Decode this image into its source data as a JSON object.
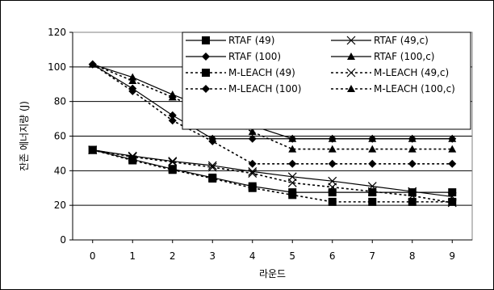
{
  "chart_data": {
    "type": "line",
    "title": "",
    "xlabel": "라운드",
    "ylabel": "잔존 에너지량 (J)",
    "xlim": [
      -0.5,
      9.5
    ],
    "ylim": [
      0,
      120
    ],
    "x_ticks": [
      0,
      1,
      2,
      3,
      4,
      5,
      6,
      7,
      8,
      9
    ],
    "y_ticks": [
      0,
      20,
      40,
      60,
      80,
      100,
      120
    ],
    "grid": "y-major",
    "legend_position": "top-right",
    "x": [
      0,
      1,
      2,
      3,
      4,
      5,
      6,
      7,
      8,
      9
    ],
    "series": [
      {
        "name": "RTAF (49)",
        "style": "solid",
        "marker": "square",
        "values": [
          52,
          46.5,
          41,
          36,
          31,
          27.5,
          27.5,
          27.5,
          27.5,
          27.5
        ]
      },
      {
        "name": "RTAF (49,c)",
        "style": "solid",
        "marker": "x",
        "values": [
          52,
          48.5,
          45.5,
          43,
          39.5,
          36.5,
          34,
          31,
          28,
          25
        ]
      },
      {
        "name": "RTAF (100)",
        "style": "solid",
        "marker": "diamond",
        "values": [
          101.5,
          87.5,
          72,
          58.5,
          58.5,
          58.5,
          58.5,
          58.5,
          58.5,
          58.5
        ]
      },
      {
        "name": "RTAF (100,c)",
        "style": "solid",
        "marker": "triangle",
        "values": [
          101.5,
          94,
          84,
          75,
          66,
          58.5,
          58.5,
          58.5,
          58.5,
          58.5
        ]
      },
      {
        "name": "M-LEACH (49)",
        "style": "dashed",
        "marker": "square",
        "values": [
          52,
          46,
          40.5,
          35.5,
          30,
          26,
          22,
          22,
          22,
          22
        ]
      },
      {
        "name": "M-LEACH (49,c)",
        "style": "dashed",
        "marker": "x",
        "values": [
          52,
          48,
          45,
          42,
          38.5,
          33,
          30.5,
          28,
          25.5,
          21.5
        ]
      },
      {
        "name": "M-LEACH (100)",
        "style": "dashed",
        "marker": "diamond",
        "values": [
          101.5,
          86,
          69,
          57,
          44,
          44,
          44,
          44,
          44,
          44
        ]
      },
      {
        "name": "M-LEACH (100,c)",
        "style": "dashed",
        "marker": "triangle",
        "values": [
          101.5,
          92,
          82.5,
          72.5,
          62.5,
          52.5,
          52.5,
          52.5,
          52.5,
          52.5
        ]
      }
    ]
  }
}
